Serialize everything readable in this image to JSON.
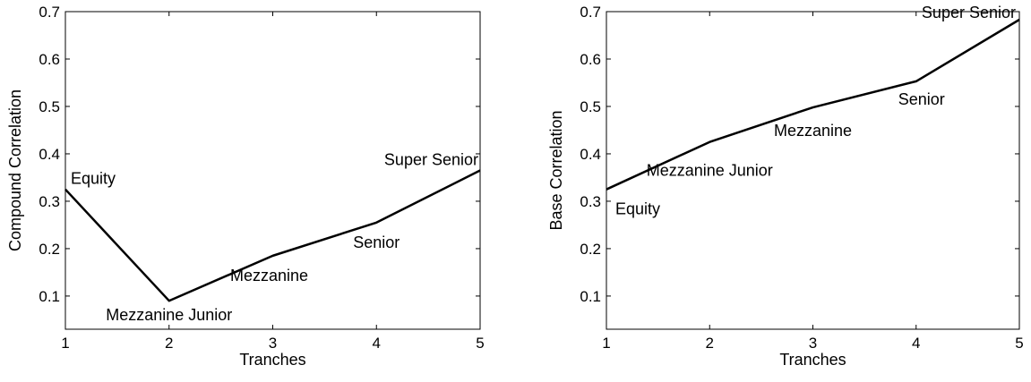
{
  "chart_data": [
    {
      "type": "line",
      "title": "",
      "xlabel": "Tranches",
      "ylabel": "Compound Correlation",
      "xlim": [
        1,
        5
      ],
      "ylim": [
        0.03,
        0.7
      ],
      "xticks": [
        1,
        2,
        3,
        4,
        5
      ],
      "yticks": [
        0.1,
        0.2,
        0.3,
        0.4,
        0.5,
        0.6,
        0.7
      ],
      "grid": false,
      "legend": "none",
      "x": [
        1,
        2,
        3,
        4,
        5
      ],
      "series": [
        {
          "values": [
            0.325,
            0.09,
            0.185,
            0.255,
            0.365
          ]
        }
      ],
      "point_labels": [
        "Equity",
        "Mezzanine Junior",
        "Mezzanine",
        "Senior",
        "Super Senior"
      ]
    },
    {
      "type": "line",
      "title": "",
      "xlabel": "Tranches",
      "ylabel": "Base Correlation",
      "xlim": [
        1,
        5
      ],
      "ylim": [
        0.03,
        0.7
      ],
      "xticks": [
        1,
        2,
        3,
        4,
        5
      ],
      "yticks": [
        0.1,
        0.2,
        0.3,
        0.4,
        0.5,
        0.6,
        0.7
      ],
      "grid": false,
      "legend": "none",
      "x": [
        1,
        2,
        3,
        4,
        5
      ],
      "series": [
        {
          "values": [
            0.325,
            0.425,
            0.498,
            0.553,
            0.683
          ]
        }
      ],
      "point_labels": [
        "Equity",
        "Mezzanine Junior",
        "Mezzanine",
        "Senior",
        "Super Senior"
      ]
    }
  ]
}
